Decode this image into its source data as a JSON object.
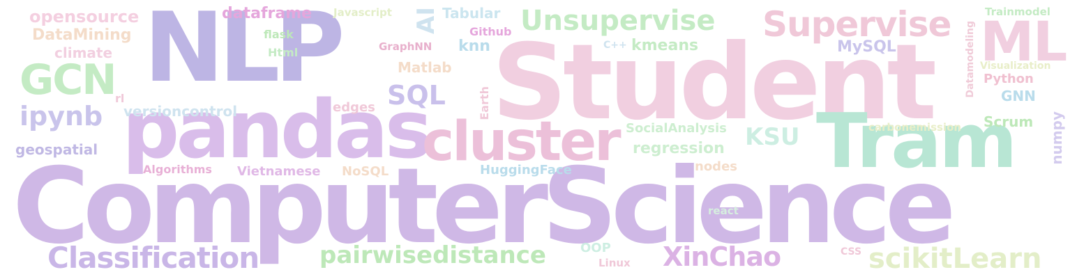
{
  "palette": {
    "lavender": "#cfb8e6",
    "periwinkle": "#bdb5e4",
    "pink": "#f1cfe0",
    "mint": "#b8e6d4",
    "green": "#c4ebc4",
    "lime": "#e3eec8",
    "peach": "#f4dcc9",
    "sky": "#b9dceb",
    "magenta": "#e5a6dc"
  },
  "words": {
    "computerscience": "ComputerScience",
    "student": "Student",
    "nlp": "NLP",
    "pandas": "pandas",
    "tram": "Tram",
    "cluster": "cluster",
    "supervise": "Supervise",
    "ml": "ML",
    "unsupervise": "Unsupervise",
    "gcn": "GCN",
    "classification": "Classification",
    "pairwisedistance": "pairwisedistance",
    "xinchao": "XinChao",
    "scikitlearn": "scikitLearn",
    "ipynb": "ipynb",
    "sql": "SQL",
    "ksu": "KSU",
    "opensource": "opensource",
    "datamining": "DataMining",
    "climate": "climate",
    "dataframe": "dataframe",
    "javascript": "Javascript",
    "ai": "AI",
    "tabular": "Tabular",
    "github": "Github",
    "flask": "flask",
    "html": "Html",
    "graphnn": "GraphNN",
    "knn": "knn",
    "cpp": "C++",
    "kmeans": "kmeans",
    "mysql": "MySQL",
    "trainmodel": "Trainmodel",
    "datamodeling": "Datamodeling",
    "visualization": "Visualization",
    "python": "Python",
    "gnn": "GNN",
    "matlab": "Matlab",
    "rl": "rl",
    "versioncontrol": "versioncontrol",
    "edges": "edges",
    "earth": "Earth",
    "socialanalysis": "SocialAnalysis",
    "carbonemission": "carbonemission",
    "scrum": "Scrum",
    "numpy": "numpy",
    "geospatial": "geospatial",
    "regression": "regression",
    "algorithms": "Algorithms",
    "vietnamese": "Vietnamese",
    "nosql": "NoSQL",
    "huggingface": "HuggingFace",
    "nodes": "nodes",
    "react": "react",
    "oop": "OOP",
    "linux": "Linux",
    "css": "CSS"
  }
}
